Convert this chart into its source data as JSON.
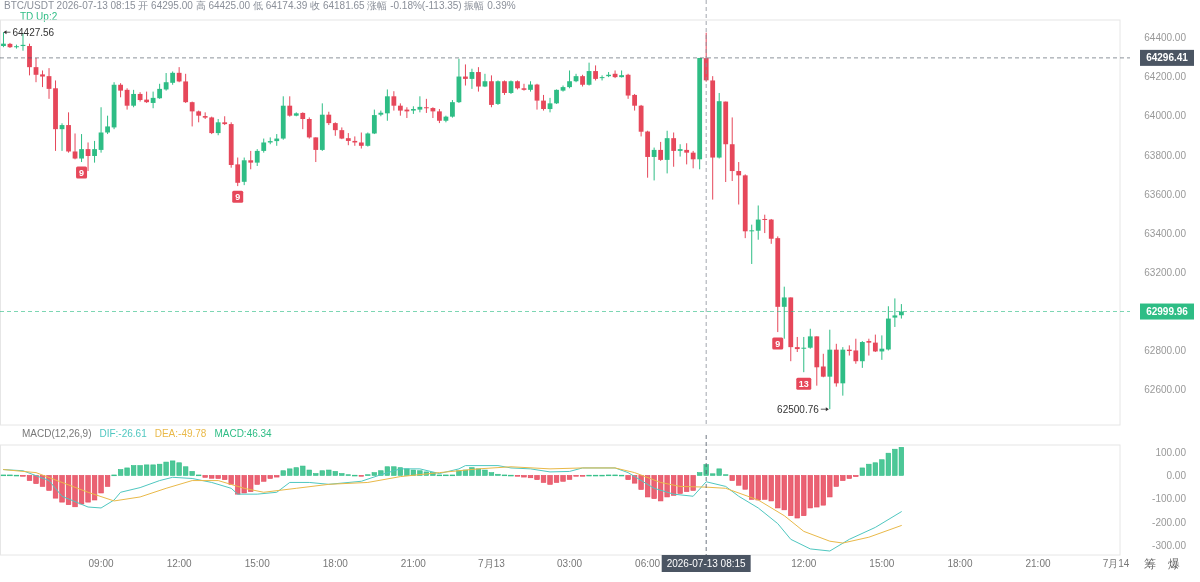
{
  "chart_data": [
    {
      "type": "candlestick",
      "title": "BTC/USDT 2026-07-13 08:15 开 64295.00 高 64425.00 低 64174.39 收 64181.65 涨幅 -0.18%(-113.35) 振幅 0.39%",
      "subtitle": "TD Up:2",
      "x": [
        "2026-07-12T05:15",
        "2026-07-12T05:30",
        "2026-07-12T05:45",
        "2026-07-12T06:00",
        "2026-07-12T06:15",
        "2026-07-12T06:30",
        "2026-07-12T06:45",
        "2026-07-12T07:00",
        "2026-07-12T07:15",
        "2026-07-12T07:30",
        "2026-07-12T07:45",
        "2026-07-12T08:00",
        "2026-07-12T08:15",
        "2026-07-12T08:30",
        "2026-07-12T08:45",
        "2026-07-12T09:00",
        "2026-07-12T09:15",
        "2026-07-12T09:30",
        "2026-07-12T09:45",
        "2026-07-12T10:00",
        "2026-07-12T10:15",
        "2026-07-12T10:30",
        "2026-07-12T10:45",
        "2026-07-12T11:00",
        "2026-07-12T11:15",
        "2026-07-12T11:30",
        "2026-07-12T11:45",
        "2026-07-12T12:00",
        "2026-07-12T12:15",
        "2026-07-12T12:30",
        "2026-07-12T12:45",
        "2026-07-12T13:00",
        "2026-07-12T13:15",
        "2026-07-12T13:30",
        "2026-07-12T13:45",
        "2026-07-12T14:00",
        "2026-07-12T14:15",
        "2026-07-12T14:30",
        "2026-07-12T14:45",
        "2026-07-12T15:00",
        "2026-07-12T15:15",
        "2026-07-12T15:30",
        "2026-07-12T15:45",
        "2026-07-12T16:00",
        "2026-07-12T16:15",
        "2026-07-12T16:30",
        "2026-07-12T16:45",
        "2026-07-12T17:00",
        "2026-07-12T17:15",
        "2026-07-12T17:30",
        "2026-07-12T17:45",
        "2026-07-12T18:00",
        "2026-07-12T18:15",
        "2026-07-12T18:30",
        "2026-07-12T18:45",
        "2026-07-12T19:00",
        "2026-07-12T19:15",
        "2026-07-12T19:30",
        "2026-07-12T19:45",
        "2026-07-12T20:00",
        "2026-07-12T20:15",
        "2026-07-12T20:30",
        "2026-07-12T20:45",
        "2026-07-12T21:00",
        "2026-07-12T21:15",
        "2026-07-12T21:30",
        "2026-07-12T21:45",
        "2026-07-12T22:00",
        "2026-07-12T22:15",
        "2026-07-12T22:30",
        "2026-07-12T22:45",
        "2026-07-12T23:00",
        "2026-07-12T23:15",
        "2026-07-12T23:30",
        "2026-07-12T23:45",
        "2026-07-13T00:00",
        "2026-07-13T00:15",
        "2026-07-13T00:30",
        "2026-07-13T00:45",
        "2026-07-13T01:00",
        "2026-07-13T01:15",
        "2026-07-13T01:30",
        "2026-07-13T01:45",
        "2026-07-13T02:00",
        "2026-07-13T02:15",
        "2026-07-13T02:30",
        "2026-07-13T02:45",
        "2026-07-13T03:00",
        "2026-07-13T03:15",
        "2026-07-13T03:30",
        "2026-07-13T03:45",
        "2026-07-13T04:00",
        "2026-07-13T04:15",
        "2026-07-13T04:30",
        "2026-07-13T04:45",
        "2026-07-13T05:00",
        "2026-07-13T05:15",
        "2026-07-13T05:30",
        "2026-07-13T05:45",
        "2026-07-13T06:00",
        "2026-07-13T06:15",
        "2026-07-13T06:30",
        "2026-07-13T06:45",
        "2026-07-13T07:00",
        "2026-07-13T07:15",
        "2026-07-13T07:30",
        "2026-07-13T07:45",
        "2026-07-13T08:00",
        "2026-07-13T08:15",
        "2026-07-13T08:30",
        "2026-07-13T08:45",
        "2026-07-13T09:00",
        "2026-07-13T09:15",
        "2026-07-13T09:30",
        "2026-07-13T09:45",
        "2026-07-13T10:00",
        "2026-07-13T10:15",
        "2026-07-13T10:30",
        "2026-07-13T10:45",
        "2026-07-13T11:00",
        "2026-07-13T11:15",
        "2026-07-13T11:30",
        "2026-07-13T11:45",
        "2026-07-13T12:00",
        "2026-07-13T12:15",
        "2026-07-13T12:30",
        "2026-07-13T12:45",
        "2026-07-13T13:00",
        "2026-07-13T13:15",
        "2026-07-13T13:30",
        "2026-07-13T13:45",
        "2026-07-13T14:00",
        "2026-07-13T14:15",
        "2026-07-13T14:30",
        "2026-07-13T14:45",
        "2026-07-13T15:00",
        "2026-07-13T15:15",
        "2026-07-13T15:30",
        "2026-07-13T15:45"
      ],
      "ohlc": [
        [
          64357,
          64427.56,
          64351,
          64369
        ],
        [
          64368,
          64373,
          64347,
          64351
        ],
        [
          64352,
          64364,
          64344,
          64356
        ],
        [
          64357,
          64421,
          64333,
          64363
        ],
        [
          64357,
          64369,
          64207,
          64249
        ],
        [
          64249,
          64296,
          64172,
          64210
        ],
        [
          64212,
          64232,
          64147,
          64201
        ],
        [
          64203,
          64244,
          64087,
          64138
        ],
        [
          64141,
          64181,
          63821,
          63932
        ],
        [
          63932,
          63962,
          63821,
          63953
        ],
        [
          63953,
          64018,
          63812,
          63818
        ],
        [
          63818,
          63910,
          63778,
          63782
        ],
        [
          63782,
          63907,
          63764,
          63830
        ],
        [
          63830,
          63864,
          63718,
          63795
        ],
        [
          63795,
          63872,
          63761,
          63830
        ],
        [
          63826,
          64044,
          63812,
          63915
        ],
        [
          63915,
          64001,
          63907,
          63946
        ],
        [
          63941,
          64172,
          63932,
          64159
        ],
        [
          64159,
          64167,
          64095,
          64129
        ],
        [
          64133,
          64141,
          64032,
          64052
        ],
        [
          64052,
          64133,
          64044,
          64112
        ],
        [
          64112,
          64121,
          64073,
          64081
        ],
        [
          64083,
          64124,
          64066,
          64070
        ],
        [
          64066,
          64124,
          64039,
          64092
        ],
        [
          64090,
          64164,
          64087,
          64138
        ],
        [
          64135,
          64219,
          64129,
          64172
        ],
        [
          64169,
          64227,
          64159,
          64220
        ],
        [
          64220,
          64249,
          64172,
          64176
        ],
        [
          64176,
          64215,
          64066,
          64070
        ],
        [
          64070,
          64073,
          63946,
          64023
        ],
        [
          64023,
          64027,
          63967,
          64001
        ],
        [
          63999,
          64018,
          63984,
          63991
        ],
        [
          63992,
          63996,
          63907,
          63912
        ],
        [
          63912,
          63984,
          63901,
          63967
        ],
        [
          63967,
          63998,
          63953,
          63958
        ],
        [
          63958,
          63967,
          63735,
          63749
        ],
        [
          63752,
          63787,
          63641,
          63658
        ],
        [
          63663,
          63787,
          63646,
          63773
        ],
        [
          63773,
          63821,
          63727,
          63761
        ],
        [
          63761,
          63830,
          63744,
          63821
        ],
        [
          63821,
          63884,
          63812,
          63864
        ],
        [
          63864,
          63890,
          63855,
          63871
        ],
        [
          63871,
          63907,
          63847,
          63884
        ],
        [
          63884,
          64100,
          63878,
          64052
        ],
        [
          64052,
          64100,
          63996,
          64001
        ],
        [
          64001,
          64018,
          63998,
          64013
        ],
        [
          64015,
          64018,
          63932,
          63984
        ],
        [
          63984,
          63992,
          63884,
          63890
        ],
        [
          63890,
          63890,
          63764,
          63826
        ],
        [
          63826,
          64064,
          63821,
          64006
        ],
        [
          64006,
          64021,
          63953,
          63963
        ],
        [
          63963,
          63967,
          63898,
          63927
        ],
        [
          63927,
          63941,
          63881,
          63884
        ],
        [
          63886,
          63912,
          63850,
          63872
        ],
        [
          63872,
          63895,
          63847,
          63864
        ],
        [
          63864,
          63915,
          63833,
          63847
        ],
        [
          63847,
          63915,
          63843,
          63910
        ],
        [
          63910,
          64032,
          63907,
          64004
        ],
        [
          64006,
          64027,
          63998,
          64016
        ],
        [
          64013,
          64135,
          63975,
          64100
        ],
        [
          64100,
          64126,
          64027,
          64052
        ],
        [
          64052,
          64064,
          64001,
          64027
        ],
        [
          64032,
          64044,
          63989,
          64023
        ],
        [
          64027,
          64049,
          64010,
          64035
        ],
        [
          64032,
          64100,
          64018,
          64046
        ],
        [
          64044,
          64087,
          64015,
          64039
        ],
        [
          64040,
          64044,
          63989,
          64023
        ],
        [
          64023,
          64035,
          63963,
          63975
        ],
        [
          63975,
          64001,
          63967,
          63996
        ],
        [
          63996,
          64081,
          63991,
          64070
        ],
        [
          64070,
          64292,
          64066,
          64201
        ],
        [
          64201,
          64263,
          64155,
          64189
        ],
        [
          64189,
          64241,
          64138,
          64224
        ],
        [
          64224,
          64249,
          64124,
          64150
        ],
        [
          64150,
          64215,
          64147,
          64177
        ],
        [
          64177,
          64207,
          64044,
          64056
        ],
        [
          64061,
          64181,
          64056,
          64177
        ],
        [
          64177,
          64181,
          64107,
          64117
        ],
        [
          64117,
          64181,
          64112,
          64177
        ],
        [
          64177,
          64181,
          64135,
          64141
        ],
        [
          64141,
          64164,
          64129,
          64133
        ],
        [
          64133,
          64177,
          64124,
          64160
        ],
        [
          64160,
          64164,
          64032,
          64078
        ],
        [
          64078,
          64107,
          64027,
          64035
        ],
        [
          64035,
          64092,
          64018,
          64064
        ],
        [
          64064,
          64135,
          64061,
          64133
        ],
        [
          64129,
          64155,
          64124,
          64147
        ],
        [
          64147,
          64232,
          64141,
          64177
        ],
        [
          64177,
          64215,
          64172,
          64203
        ],
        [
          64203,
          64210,
          64150,
          64159
        ],
        [
          64159,
          64272,
          64155,
          64229
        ],
        [
          64229,
          64258,
          64181,
          64189
        ],
        [
          64193,
          64207,
          64181,
          64198
        ],
        [
          64203,
          64224,
          64198,
          64210
        ],
        [
          64215,
          64232,
          64193,
          64198
        ],
        [
          64198,
          64232,
          64196,
          64208
        ],
        [
          64210,
          64215,
          64087,
          64104
        ],
        [
          64107,
          64112,
          64027,
          64052
        ],
        [
          64052,
          64056,
          63895,
          63919
        ],
        [
          63920,
          63924,
          63684,
          63790
        ],
        [
          63790,
          63838,
          63670,
          63826
        ],
        [
          63826,
          63867,
          63770,
          63775
        ],
        [
          63775,
          63924,
          63706,
          63886
        ],
        [
          63886,
          63915,
          63740,
          63821
        ],
        [
          63821,
          63855,
          63792,
          63830
        ],
        [
          63826,
          63860,
          63752,
          63812
        ],
        [
          63812,
          63821,
          63732,
          63778
        ],
        [
          63778,
          64296,
          63727,
          64296
        ],
        [
          64295.0,
          64425.0,
          64174.39,
          64181.65
        ],
        [
          64181,
          64203,
          63572,
          63787
        ],
        [
          63787,
          64117,
          63782,
          64075
        ],
        [
          64073,
          64073,
          63662,
          63855
        ],
        [
          63855,
          63992,
          63667,
          63718
        ],
        [
          63718,
          63764,
          63547,
          63696
        ],
        [
          63696,
          63701,
          63375,
          63410
        ],
        [
          63410,
          63444,
          63243,
          63415
        ],
        [
          63413,
          63542,
          63367,
          63470
        ],
        [
          63473,
          63495,
          63401,
          63468
        ],
        [
          63470,
          63473,
          63346,
          63372
        ],
        [
          63375,
          63384,
          62895,
          63024
        ],
        [
          63024,
          63127,
          62861,
          63072
        ],
        [
          63072,
          63072,
          62746,
          62818
        ],
        [
          62818,
          62870,
          62793,
          62808
        ],
        [
          62810,
          62870,
          62690,
          62815
        ],
        [
          62815,
          62912,
          62810,
          62873
        ],
        [
          62873,
          62873,
          62621,
          62715
        ],
        [
          62719,
          62784,
          62664,
          62667
        ],
        [
          62667,
          62907,
          62500.76,
          62805
        ],
        [
          62805,
          62835,
          62616,
          62633
        ],
        [
          62633,
          62818,
          62570,
          62805
        ],
        [
          62805,
          62827,
          62775,
          62798
        ],
        [
          62801,
          62861,
          62733,
          62746
        ],
        [
          62746,
          62849,
          62712,
          62844
        ],
        [
          62849,
          62861,
          62775,
          62841
        ],
        [
          62841,
          62882,
          62793,
          62796
        ],
        [
          62796,
          62878,
          62753,
          62810
        ],
        [
          62806,
          63027,
          62801,
          62964
        ],
        [
          62969,
          63067,
          62921,
          62980
        ],
        [
          62981,
          63038,
          62964,
          62999.96
        ]
      ],
      "colors": [
        "#2ebd85",
        "#e6475a",
        "#2ebd85",
        "#2ebd85",
        "#e6475a",
        "#e6475a",
        "#e6475a",
        "#e6475a",
        "#e6475a",
        "#2ebd85",
        "#e6475a",
        "#e6475a",
        "#2ebd85",
        "#e6475a",
        "#2ebd85",
        "#2ebd85",
        "#2ebd85",
        "#2ebd85",
        "#e6475a",
        "#e6475a",
        "#2ebd85",
        "#e6475a",
        "#e6475a",
        "#2ebd85",
        "#2ebd85",
        "#2ebd85",
        "#2ebd85",
        "#e6475a",
        "#e6475a",
        "#e6475a",
        "#e6475a",
        "#e6475a",
        "#e6475a",
        "#2ebd85",
        "#e6475a",
        "#e6475a",
        "#e6475a",
        "#2ebd85",
        "#e6475a",
        "#2ebd85",
        "#2ebd85",
        "#2ebd85",
        "#2ebd85",
        "#2ebd85",
        "#e6475a",
        "#2ebd85",
        "#e6475a",
        "#e6475a",
        "#e6475a",
        "#2ebd85",
        "#e6475a",
        "#e6475a",
        "#e6475a",
        "#e6475a",
        "#e6475a",
        "#e6475a",
        "#2ebd85",
        "#2ebd85",
        "#2ebd85",
        "#2ebd85",
        "#e6475a",
        "#e6475a",
        "#e6475a",
        "#2ebd85",
        "#2ebd85",
        "#e6475a",
        "#e6475a",
        "#e6475a",
        "#2ebd85",
        "#2ebd85",
        "#2ebd85",
        "#e6475a",
        "#2ebd85",
        "#e6475a",
        "#2ebd85",
        "#e6475a",
        "#2ebd85",
        "#e6475a",
        "#2ebd85",
        "#e6475a",
        "#e6475a",
        "#2ebd85",
        "#e6475a",
        "#e6475a",
        "#2ebd85",
        "#2ebd85",
        "#2ebd85",
        "#2ebd85",
        "#2ebd85",
        "#e6475a",
        "#2ebd85",
        "#e6475a",
        "#2ebd85",
        "#2ebd85",
        "#e6475a",
        "#2ebd85",
        "#e6475a",
        "#e6475a",
        "#e6475a",
        "#e6475a",
        "#2ebd85",
        "#e6475a",
        "#2ebd85",
        "#e6475a",
        "#2ebd85",
        "#e6475a",
        "#e6475a",
        "#2ebd85",
        "#e6475a",
        "#e6475a",
        "#2ebd85",
        "#e6475a",
        "#e6475a",
        "#e6475a",
        "#e6475a",
        "#2ebd85",
        "#2ebd85",
        "#e6475a",
        "#e6475a",
        "#e6475a",
        "#2ebd85",
        "#e6475a",
        "#e6475a",
        "#2ebd85",
        "#2ebd85",
        "#e6475a",
        "#e6475a",
        "#2ebd85",
        "#e6475a",
        "#2ebd85",
        "#e6475a",
        "#e6475a",
        "#2ebd85",
        "#e6475a",
        "#e6475a",
        "#2ebd85",
        "#2ebd85",
        "#2ebd85",
        "#2ebd85"
      ],
      "xlim": [
        "2026-07-12T05:07",
        "2026-07-14T00:09"
      ],
      "ylim": [
        62420,
        64490
      ],
      "yticks": [
        {
          "value": 62600,
          "label": "62600.00"
        },
        {
          "value": 62800,
          "label": "62800.00"
        },
        {
          "value": 63200,
          "label": "63200.00"
        },
        {
          "value": 63400,
          "label": "63400.00"
        },
        {
          "value": 63600,
          "label": "63600.00"
        },
        {
          "value": 63800,
          "label": "63800.00"
        },
        {
          "value": 64000,
          "label": "64000.00"
        },
        {
          "value": 64200,
          "label": "64200.00"
        },
        {
          "value": 64400,
          "label": "64400.00"
        }
      ],
      "tick_labels": "y",
      "ref_lines": [
        {
          "axis": "y",
          "value": 64296.41,
          "label": "64296.41",
          "color": "#4b5563"
        },
        {
          "axis": "y",
          "value": 62999.96,
          "label": "62999.96",
          "color": "#2ebd85"
        },
        {
          "axis": "x",
          "value": "2026-07-13T08:15",
          "color": "#8a8f99"
        }
      ],
      "annotations": [
        {
          "text": "64427.56",
          "x": "2026-07-12T05:15",
          "y": 64427.56
        },
        {
          "text": "62500.76",
          "x": "2026-07-13T13:00",
          "y": 62500.76
        },
        {
          "text": "9",
          "x": "2026-07-12T08:15",
          "y": 63711
        },
        {
          "text": "9",
          "x": "2026-07-12T14:15",
          "y": 63587
        },
        {
          "text": "9",
          "x": "2026-07-13T11:00",
          "y": 62837
        },
        {
          "text": "13",
          "x": "2026-07-13T12:00",
          "y": 62631
        }
      ]
    },
    {
      "type": "bar",
      "title": "MACD(12,26,9)",
      "legend": "top left",
      "x": [
        "2026-07-12T05:15",
        "2026-07-12T05:30",
        "2026-07-12T05:45",
        "2026-07-12T06:00",
        "2026-07-12T06:15",
        "2026-07-12T06:30",
        "2026-07-12T06:45",
        "2026-07-12T07:00",
        "2026-07-12T07:15",
        "2026-07-12T07:30",
        "2026-07-12T07:45",
        "2026-07-12T08:00",
        "2026-07-12T08:15",
        "2026-07-12T08:30",
        "2026-07-12T08:45",
        "2026-07-12T09:00",
        "2026-07-12T09:15",
        "2026-07-12T09:30",
        "2026-07-12T09:45",
        "2026-07-12T10:00",
        "2026-07-12T10:15",
        "2026-07-12T10:30",
        "2026-07-12T10:45",
        "2026-07-12T11:00",
        "2026-07-12T11:15",
        "2026-07-12T11:30",
        "2026-07-12T11:45",
        "2026-07-12T12:00",
        "2026-07-12T12:15",
        "2026-07-12T12:30",
        "2026-07-12T12:45",
        "2026-07-12T13:00",
        "2026-07-12T13:15",
        "2026-07-12T13:30",
        "2026-07-12T13:45",
        "2026-07-12T14:00",
        "2026-07-12T14:15",
        "2026-07-12T14:30",
        "2026-07-12T14:45",
        "2026-07-12T15:00",
        "2026-07-12T15:15",
        "2026-07-12T15:30",
        "2026-07-12T15:45",
        "2026-07-12T16:00",
        "2026-07-12T16:15",
        "2026-07-12T16:30",
        "2026-07-12T16:45",
        "2026-07-12T17:00",
        "2026-07-12T17:15",
        "2026-07-12T17:30",
        "2026-07-12T17:45",
        "2026-07-12T18:00",
        "2026-07-12T18:15",
        "2026-07-12T18:30",
        "2026-07-12T18:45",
        "2026-07-12T19:00",
        "2026-07-12T19:15",
        "2026-07-12T19:30",
        "2026-07-12T19:45",
        "2026-07-12T20:00",
        "2026-07-12T20:15",
        "2026-07-12T20:30",
        "2026-07-12T20:45",
        "2026-07-12T21:00",
        "2026-07-12T21:15",
        "2026-07-12T21:30",
        "2026-07-12T21:45",
        "2026-07-12T22:00",
        "2026-07-12T22:15",
        "2026-07-12T22:30",
        "2026-07-12T22:45",
        "2026-07-12T23:00",
        "2026-07-12T23:15",
        "2026-07-12T23:30",
        "2026-07-12T23:45",
        "2026-07-13T00:00",
        "2026-07-13T00:15",
        "2026-07-13T00:30",
        "2026-07-13T00:45",
        "2026-07-13T01:00",
        "2026-07-13T01:15",
        "2026-07-13T01:30",
        "2026-07-13T01:45",
        "2026-07-13T02:00",
        "2026-07-13T02:15",
        "2026-07-13T02:30",
        "2026-07-13T02:45",
        "2026-07-13T03:00",
        "2026-07-13T03:15",
        "2026-07-13T03:30",
        "2026-07-13T03:45",
        "2026-07-13T04:00",
        "2026-07-13T04:15",
        "2026-07-13T04:30",
        "2026-07-13T04:45",
        "2026-07-13T05:00",
        "2026-07-13T05:15",
        "2026-07-13T05:30",
        "2026-07-13T05:45",
        "2026-07-13T06:00",
        "2026-07-13T06:15",
        "2026-07-13T06:30",
        "2026-07-13T06:45",
        "2026-07-13T07:00",
        "2026-07-13T07:15",
        "2026-07-13T07:30",
        "2026-07-13T07:45",
        "2026-07-13T08:00",
        "2026-07-13T08:15",
        "2026-07-13T08:30",
        "2026-07-13T08:45",
        "2026-07-13T09:00",
        "2026-07-13T09:15",
        "2026-07-13T09:30",
        "2026-07-13T09:45",
        "2026-07-13T10:00",
        "2026-07-13T10:15",
        "2026-07-13T10:30",
        "2026-07-13T10:45",
        "2026-07-13T11:00",
        "2026-07-13T11:15",
        "2026-07-13T11:30",
        "2026-07-13T11:45",
        "2026-07-13T12:00",
        "2026-07-13T12:15",
        "2026-07-13T12:30",
        "2026-07-13T12:45",
        "2026-07-13T13:00",
        "2026-07-13T13:15",
        "2026-07-13T13:30",
        "2026-07-13T13:45",
        "2026-07-13T14:00",
        "2026-07-13T14:15",
        "2026-07-13T14:30",
        "2026-07-13T14:45",
        "2026-07-13T15:00",
        "2026-07-13T15:15",
        "2026-07-13T15:30",
        "2026-07-13T15:45"
      ],
      "series": [
        {
          "name": "DIF:-26.61",
          "type": "line",
          "color": "#4fc7c0",
          "x": [
            "2026-07-12T05:15",
            "2026-07-12T06:00",
            "2026-07-12T07:00",
            "2026-07-12T07:30",
            "2026-07-12T08:30",
            "2026-07-12T09:00",
            "2026-07-12T09:30",
            "2026-07-12T09:45",
            "2026-07-12T10:30",
            "2026-07-12T11:15",
            "2026-07-12T11:45",
            "2026-07-12T12:30",
            "2026-07-12T13:15",
            "2026-07-12T14:00",
            "2026-07-12T14:15",
            "2026-07-12T15:00",
            "2026-07-12T15:45",
            "2026-07-12T16:15",
            "2026-07-12T17:00",
            "2026-07-12T17:45",
            "2026-07-12T19:00",
            "2026-07-12T19:45",
            "2026-07-12T20:30",
            "2026-07-12T21:15",
            "2026-07-12T22:00",
            "2026-07-12T22:45",
            "2026-07-12T23:00",
            "2026-07-13T00:15",
            "2026-07-13T00:45",
            "2026-07-13T01:30",
            "2026-07-13T02:15",
            "2026-07-13T03:00",
            "2026-07-13T03:30",
            "2026-07-13T04:45",
            "2026-07-13T05:15",
            "2026-07-13T06:15",
            "2026-07-13T07:00",
            "2026-07-13T07:45",
            "2026-07-13T08:15",
            "2026-07-13T09:00",
            "2026-07-13T09:30",
            "2026-07-13T10:15",
            "2026-07-13T11:00",
            "2026-07-13T11:30",
            "2026-07-13T12:15",
            "2026-07-13T13:00",
            "2026-07-13T13:45",
            "2026-07-13T14:45",
            "2026-07-13T15:45"
          ],
          "values": [
            25,
            20,
            -22,
            -89,
            -135,
            -139,
            -105,
            -72,
            -52,
            -22,
            -8,
            -13,
            -30,
            -55,
            -80,
            -80,
            -72,
            -30,
            -30,
            -38,
            -25,
            3,
            28,
            28,
            8,
            28,
            42,
            42,
            32,
            28,
            15,
            17,
            32,
            32,
            12,
            -55,
            -80,
            -89,
            -27,
            -47,
            -89,
            -139,
            -206,
            -273,
            -314,
            -323,
            -273,
            -222,
            -155
          ]
        },
        {
          "name": "DEA:-49.78",
          "type": "line",
          "color": "#e9b949",
          "x": [
            "2026-07-12T05:15",
            "2026-07-12T06:30",
            "2026-07-12T07:30",
            "2026-07-12T08:30",
            "2026-07-12T09:30",
            "2026-07-12T10:30",
            "2026-07-12T11:30",
            "2026-07-12T12:30",
            "2026-07-12T13:30",
            "2026-07-12T14:30",
            "2026-07-12T15:15",
            "2026-07-12T16:30",
            "2026-07-12T17:45",
            "2026-07-12T19:15",
            "2026-07-12T20:30",
            "2026-07-12T22:00",
            "2026-07-12T23:30",
            "2026-07-13T00:45",
            "2026-07-13T02:15",
            "2026-07-13T03:30",
            "2026-07-13T04:45",
            "2026-07-13T05:30",
            "2026-07-13T06:30",
            "2026-07-13T07:15",
            "2026-07-13T08:15",
            "2026-07-13T09:00",
            "2026-07-13T10:15",
            "2026-07-13T11:15",
            "2026-07-13T12:00",
            "2026-07-13T13:00",
            "2026-07-13T13:30",
            "2026-07-13T14:30",
            "2026-07-13T15:45"
          ],
          "values": [
            25,
            12,
            -30,
            -72,
            -109,
            -92,
            -55,
            -22,
            -22,
            -55,
            -72,
            -55,
            -38,
            -30,
            -5,
            12,
            28,
            37,
            28,
            32,
            32,
            12,
            -30,
            -47,
            -50,
            -55,
            -105,
            -172,
            -239,
            -281,
            -289,
            -264,
            -214
          ]
        },
        {
          "name": "MACD:46.34",
          "type": "bar",
          "color": "#2ebd85",
          "values": [
            2,
            2,
            1,
            -2,
            -22,
            -35,
            -47,
            -64,
            -97,
            -114,
            -125,
            -134,
            -122,
            -114,
            -105,
            -75,
            -47,
            2,
            25,
            32,
            42,
            42,
            45,
            45,
            48,
            57,
            62,
            54,
            37,
            17,
            2,
            -8,
            -12,
            -13,
            -18,
            -38,
            -80,
            -75,
            -69,
            -38,
            -25,
            -13,
            -7,
            20,
            28,
            33,
            40,
            23,
            8,
            20,
            23,
            17,
            8,
            3,
            1,
            -2,
            3,
            12,
            20,
            37,
            37,
            33,
            28,
            23,
            20,
            15,
            12,
            2,
            2,
            2,
            20,
            23,
            33,
            28,
            23,
            12,
            5,
            2,
            1,
            -1,
            -7,
            -10,
            -18,
            -30,
            -38,
            -30,
            -25,
            -17,
            -2,
            -2,
            1,
            1,
            1,
            2,
            2,
            1,
            -18,
            -33,
            -60,
            -92,
            -99,
            -109,
            -92,
            -85,
            -77,
            -69,
            -64,
            12,
            46,
            7,
            28,
            3,
            -22,
            -42,
            -59,
            -102,
            -105,
            -102,
            -109,
            -139,
            -147,
            -172,
            -182,
            -172,
            -139,
            -135,
            -127,
            -92,
            -47,
            -22,
            -13,
            -5,
            32,
            48,
            54,
            67,
            95,
            112,
            120
          ],
          "colors": [
            "#2ebd85",
            "#2ebd85",
            "#2ebd85",
            "#e6475a",
            "#e6475a",
            "#e6475a",
            "#e6475a",
            "#e6475a",
            "#e6475a",
            "#e6475a",
            "#e6475a",
            "#e6475a",
            "#e6475a",
            "#e6475a",
            "#e6475a",
            "#e6475a",
            "#e6475a",
            "#2ebd85",
            "#2ebd85",
            "#2ebd85",
            "#2ebd85",
            "#2ebd85",
            "#2ebd85",
            "#2ebd85",
            "#2ebd85",
            "#2ebd85",
            "#2ebd85",
            "#2ebd85",
            "#2ebd85",
            "#2ebd85",
            "#2ebd85",
            "#e6475a",
            "#e6475a",
            "#e6475a",
            "#e6475a",
            "#e6475a",
            "#e6475a",
            "#e6475a",
            "#e6475a",
            "#e6475a",
            "#e6475a",
            "#e6475a",
            "#e6475a",
            "#2ebd85",
            "#2ebd85",
            "#2ebd85",
            "#2ebd85",
            "#2ebd85",
            "#2ebd85",
            "#2ebd85",
            "#2ebd85",
            "#2ebd85",
            "#2ebd85",
            "#2ebd85",
            "#2ebd85",
            "#e6475a",
            "#2ebd85",
            "#2ebd85",
            "#2ebd85",
            "#2ebd85",
            "#2ebd85",
            "#2ebd85",
            "#2ebd85",
            "#2ebd85",
            "#2ebd85",
            "#2ebd85",
            "#2ebd85",
            "#2ebd85",
            "#2ebd85",
            "#2ebd85",
            "#2ebd85",
            "#2ebd85",
            "#2ebd85",
            "#2ebd85",
            "#2ebd85",
            "#2ebd85",
            "#2ebd85",
            "#2ebd85",
            "#2ebd85",
            "#e6475a",
            "#e6475a",
            "#e6475a",
            "#e6475a",
            "#e6475a",
            "#e6475a",
            "#e6475a",
            "#e6475a",
            "#e6475a",
            "#e6475a",
            "#e6475a",
            "#2ebd85",
            "#2ebd85",
            "#2ebd85",
            "#2ebd85",
            "#2ebd85",
            "#2ebd85",
            "#e6475a",
            "#e6475a",
            "#e6475a",
            "#e6475a",
            "#e6475a",
            "#e6475a",
            "#e6475a",
            "#e6475a",
            "#e6475a",
            "#e6475a",
            "#e6475a",
            "#2ebd85",
            "#2ebd85",
            "#2ebd85",
            "#2ebd85",
            "#2ebd85",
            "#e6475a",
            "#e6475a",
            "#e6475a",
            "#e6475a",
            "#e6475a",
            "#e6475a",
            "#e6475a",
            "#e6475a",
            "#e6475a",
            "#e6475a",
            "#e6475a",
            "#e6475a",
            "#e6475a",
            "#e6475a",
            "#e6475a",
            "#e6475a",
            "#e6475a",
            "#e6475a",
            "#e6475a",
            "#e6475a",
            "#2ebd85",
            "#2ebd85",
            "#2ebd85",
            "#2ebd85",
            "#2ebd85",
            "#2ebd85",
            "#2ebd85"
          ]
        }
      ],
      "xlim": [
        "2026-07-12T05:07",
        "2026-07-14T00:09"
      ],
      "xticks": [
        {
          "value": "2026-07-12T09:00",
          "label": "09:00"
        },
        {
          "value": "2026-07-12T12:00",
          "label": "12:00"
        },
        {
          "value": "2026-07-12T15:00",
          "label": "15:00"
        },
        {
          "value": "2026-07-12T18:00",
          "label": "18:00"
        },
        {
          "value": "2026-07-12T21:00",
          "label": "21:00"
        },
        {
          "value": "2026-07-13T00:00",
          "label": "7月13"
        },
        {
          "value": "2026-07-13T03:00",
          "label": "03:00"
        },
        {
          "value": "2026-07-13T06:00",
          "label": "06:00"
        },
        {
          "value": "2026-07-13T12:00",
          "label": "12:00"
        },
        {
          "value": "2026-07-13T15:00",
          "label": "15:00"
        },
        {
          "value": "2026-07-13T18:00",
          "label": "18:00"
        },
        {
          "value": "2026-07-13T21:00",
          "label": "21:00"
        },
        {
          "value": "2026-07-14T00:00",
          "label": "7月14"
        }
      ],
      "ylim": [
        -340,
        130
      ],
      "yticks": [
        {
          "value": -300,
          "label": "-300.00"
        },
        {
          "value": -200,
          "label": "-200.00"
        },
        {
          "value": -100,
          "label": "-100.00"
        },
        {
          "value": 0,
          "label": "0.00"
        },
        {
          "value": 100,
          "label": "100.00"
        }
      ],
      "ref_lines": [
        {
          "axis": "x",
          "value": "2026-07-13T08:15",
          "label": "2026-07-13 08:15",
          "color": "#4b5563"
        }
      ],
      "annotations": [
        "筹",
        "爆"
      ]
    }
  ]
}
